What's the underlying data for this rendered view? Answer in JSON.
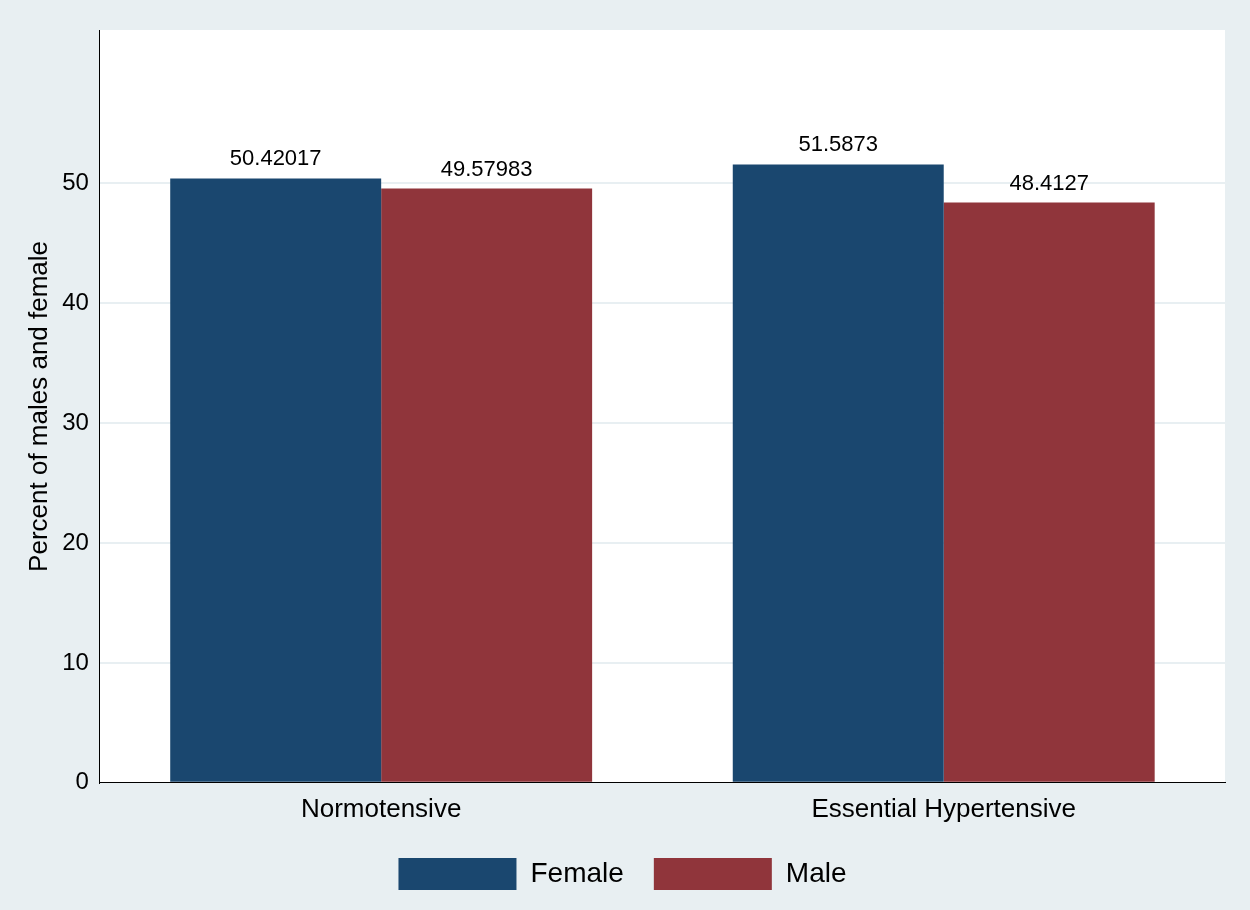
{
  "chart_data": {
    "type": "bar",
    "ylabel": "Percent of males and female",
    "categories": [
      "Normotensive",
      "Essential Hypertensive"
    ],
    "series": [
      {
        "name": "Female",
        "color": "#1a476f",
        "values": [
          50.42017,
          51.5873
        ]
      },
      {
        "name": "Male",
        "color": "#90353b",
        "values": [
          49.57983,
          48.4127
        ]
      }
    ],
    "ylim": [
      0,
      62.8
    ],
    "yticks": [
      0,
      10,
      20,
      30,
      40,
      50
    ],
    "grid": "y",
    "legend": "bottom",
    "data_labels": true
  }
}
